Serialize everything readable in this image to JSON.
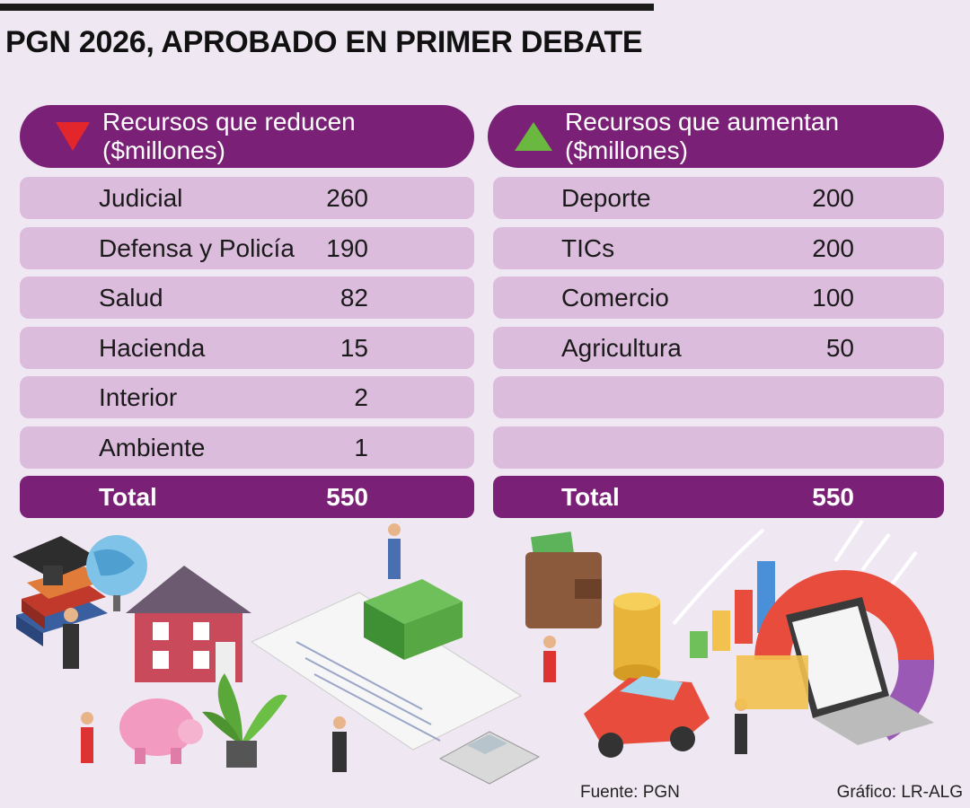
{
  "title": "PGN 2026, APROBADO EN PRIMER DEBATE",
  "chart_data": {
    "type": "table",
    "title": "PGN 2026, APROBADO EN PRIMER DEBATE",
    "tables": [
      {
        "header": "Recursos que reducen ($millones)",
        "indicator_color": "#e3262c",
        "rows": [
          {
            "label": "Judicial",
            "value": "260"
          },
          {
            "label": "Defensa y Policía",
            "value": "190"
          },
          {
            "label": "Salud",
            "value": "82"
          },
          {
            "label": "Hacienda",
            "value": "15"
          },
          {
            "label": "Interior",
            "value": "2"
          },
          {
            "label": "Ambiente",
            "value": "1"
          }
        ],
        "total": {
          "label": "Total",
          "value": "550"
        }
      },
      {
        "header": "Recursos que aumentan ($millones)",
        "indicator_color": "#6bb840",
        "rows": [
          {
            "label": "Deporte",
            "value": "200"
          },
          {
            "label": "TICs",
            "value": "200"
          },
          {
            "label": "Comercio",
            "value": "100"
          },
          {
            "label": "Agricultura",
            "value": "50"
          },
          {
            "label": "",
            "value": ""
          },
          {
            "label": "",
            "value": ""
          }
        ],
        "total": {
          "label": "Total",
          "value": "550"
        }
      }
    ]
  },
  "footer": {
    "source": "Fuente:  PGN",
    "credit": "Gráfico: LR-ALG"
  },
  "colors": {
    "background": "#efe7f1",
    "header": "#7a2076",
    "row": "#dcbcdc",
    "decrease": "#e3262c",
    "increase": "#6bb840"
  }
}
